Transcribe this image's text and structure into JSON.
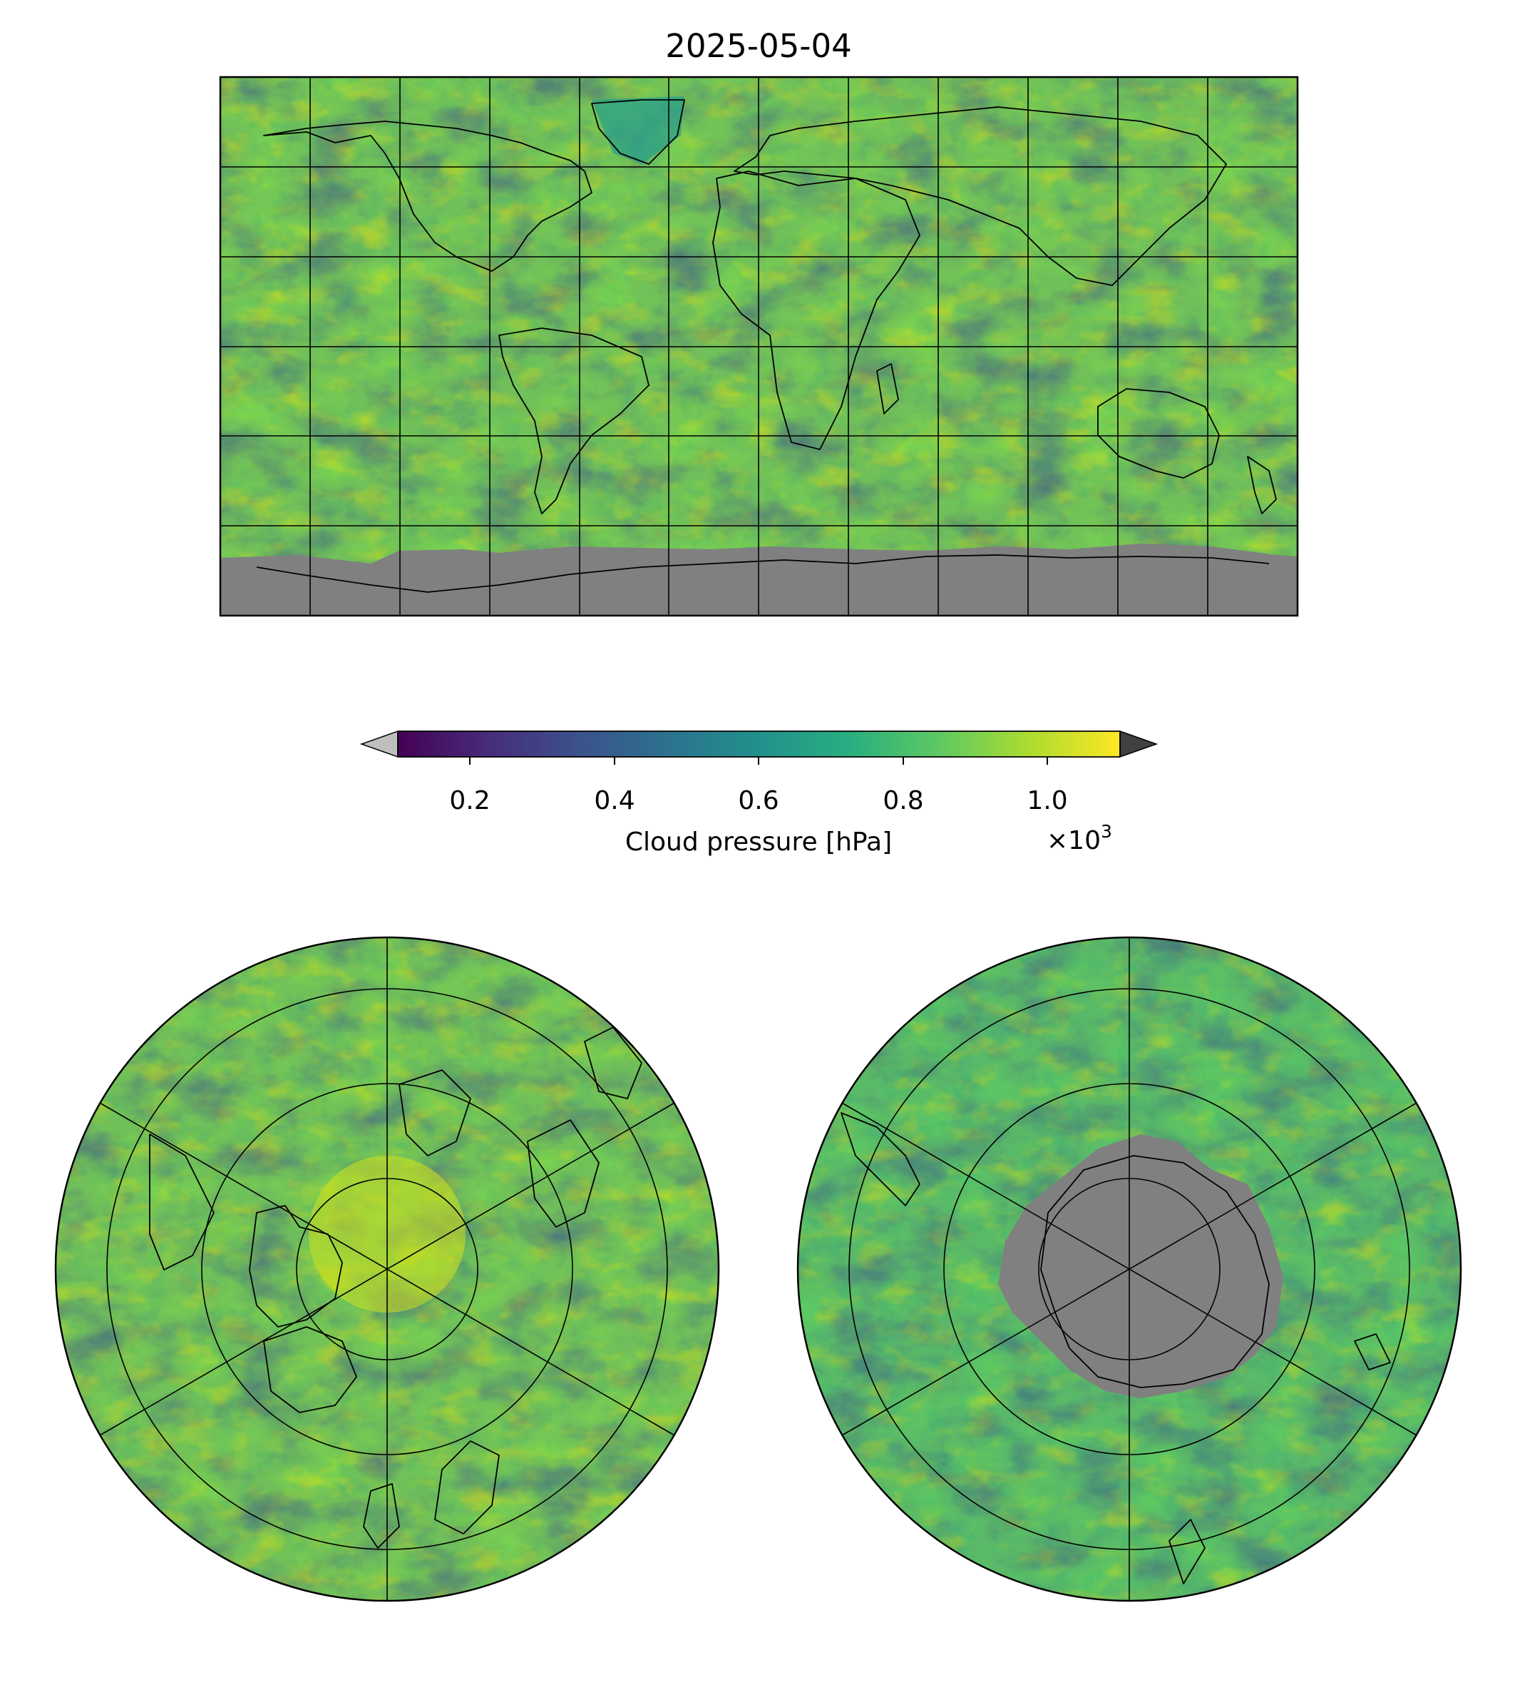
{
  "figure": {
    "title": "2025-05-04"
  },
  "panels": {
    "top": {
      "projection": "equirectangular",
      "gridlines": true,
      "coastlines": true,
      "no_data_color": "#808080"
    },
    "bottom_left": {
      "projection": "north-polar stereographic",
      "gridlines": true,
      "coastlines": true
    },
    "bottom_right": {
      "projection": "south-polar stereographic",
      "gridlines": true,
      "coastlines": true,
      "no_data_color": "#808080"
    }
  },
  "colorbar": {
    "label": "Cloud pressure [hPa]",
    "colormap": "viridis",
    "range": [
      0.1,
      1.1
    ],
    "ticks": [
      0.2,
      0.4,
      0.6,
      0.8,
      1.0
    ],
    "tick_labels": [
      "0.2",
      "0.4",
      "0.6",
      "0.8",
      "1.0"
    ],
    "multiplier_base": "×10",
    "multiplier_exponent": "3",
    "under_color": "#bfbfbf",
    "over_color": "#404040"
  },
  "colors": {
    "dark": "#440154",
    "blue": "#3b528b",
    "teal": "#21918c",
    "green": "#5ec962",
    "yellow": "#fde725",
    "gray_nodata": "#808080"
  }
}
